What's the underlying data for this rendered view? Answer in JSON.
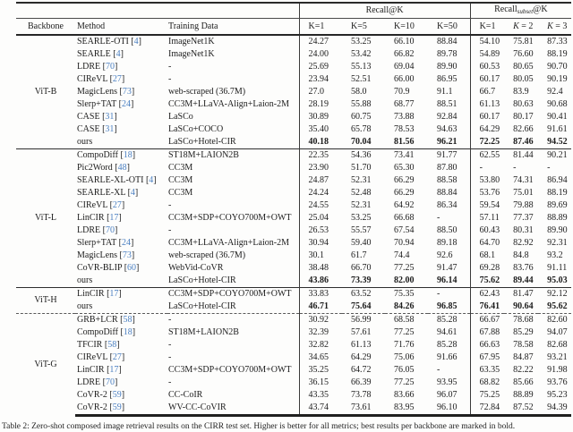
{
  "table": {
    "group1_label": "Recall@K",
    "group2": {
      "prefix": "Recall",
      "subscript": "subset",
      "suffix": "@K"
    },
    "columns": {
      "backbone": "Backbone",
      "method": "Method",
      "training": "Training Data",
      "r_k1": "K=1",
      "r_k5": "K=5",
      "r_k10": "K=10",
      "r_k50": "K=50",
      "s_k1": "K=1",
      "s_k2": {
        "k": "K",
        "rest": " = 2"
      },
      "s_k3": {
        "k": "K",
        "rest": " = 3"
      }
    }
  },
  "colors": {
    "citation_blue": "#4a7fc1",
    "text": "#1c1c1c",
    "background": "#fdfdfc"
  },
  "sections": [
    {
      "backbone": "ViT-B",
      "divider": "none",
      "rows": [
        {
          "method": "SEARLE-OTI",
          "cite": "4",
          "training": "ImageNet1K",
          "values": [
            "24.27",
            "53.25",
            "66.10",
            "88.84",
            "54.10",
            "75.81",
            "87.33"
          ],
          "bold": false
        },
        {
          "method": "SEARLE",
          "cite": "4",
          "training": "ImageNet1K",
          "values": [
            "24.00",
            "53.42",
            "66.82",
            "89.78",
            "54.89",
            "76.60",
            "88.19"
          ],
          "bold": false
        },
        {
          "method": "LDRE",
          "cite": "70",
          "training": "-",
          "values": [
            "25.69",
            "55.13",
            "69.04",
            "89.90",
            "60.53",
            "80.65",
            "90.70"
          ],
          "bold": false
        },
        {
          "method": "CIReVL",
          "cite": "27",
          "training": "-",
          "values": [
            "23.94",
            "52.51",
            "66.00",
            "86.95",
            "60.17",
            "80.05",
            "90.19"
          ],
          "bold": false
        },
        {
          "method": "MagicLens",
          "cite": "73",
          "training": "web-scraped (36.7M)",
          "values": [
            "27.0",
            "58.0",
            "70.9",
            "91.1",
            "66.7",
            "83.9",
            "92.4"
          ],
          "bold": false
        },
        {
          "method": "Slerp+TAT",
          "cite": "24",
          "training": "CC3M+LLaVA-Align+Laion-2M",
          "values": [
            "28.19",
            "55.88",
            "68.77",
            "88.51",
            "61.13",
            "80.63",
            "90.68"
          ],
          "bold": false
        },
        {
          "method": "CASE",
          "cite": "31",
          "training": "LaSCo",
          "values": [
            "30.89",
            "60.75",
            "73.88",
            "92.84",
            "60.17",
            "80.17",
            "90.41"
          ],
          "bold": false
        },
        {
          "method": "CASE",
          "cite": "31",
          "training": "LaSCo+COCO",
          "values": [
            "35.40",
            "65.78",
            "78.53",
            "94.63",
            "64.29",
            "82.66",
            "91.61"
          ],
          "bold": false
        },
        {
          "method": "ours",
          "cite": "",
          "training": "LaSCo+Hotel-CIR",
          "values": [
            "40.18",
            "70.04",
            "81.56",
            "96.21",
            "72.25",
            "87.46",
            "94.52"
          ],
          "bold": true
        }
      ]
    },
    {
      "backbone": "ViT-L",
      "divider": "solid",
      "rows": [
        {
          "method": "CompoDiff",
          "cite": "18",
          "training": "ST18M+LAION2B",
          "values": [
            "22.35",
            "54.36",
            "73.41",
            "91.77",
            "62.55",
            "81.44",
            "90.21"
          ],
          "bold": false
        },
        {
          "method": "Pic2Word",
          "cite": "48",
          "training": "CC3M",
          "values": [
            "23.90",
            "51.70",
            "65.30",
            "87.80",
            "-",
            "-",
            "-"
          ],
          "bold": false
        },
        {
          "method": "SEARLE-XL-OTI",
          "cite": "4",
          "training": "CC3M",
          "values": [
            "24.87",
            "52.31",
            "66.29",
            "88.58",
            "53.80",
            "74.31",
            "86.94"
          ],
          "bold": false
        },
        {
          "method": "SEARLE-XL",
          "cite": "4",
          "training": "CC3M",
          "values": [
            "24.24",
            "52.48",
            "66.29",
            "88.84",
            "53.76",
            "75.01",
            "88.19"
          ],
          "bold": false
        },
        {
          "method": "CIReVL",
          "cite": "27",
          "training": "-",
          "values": [
            "24.55",
            "52.31",
            "64.92",
            "86.34",
            "59.54",
            "79.88",
            "89.69"
          ],
          "bold": false
        },
        {
          "method": "LinCIR",
          "cite": "17",
          "training": "CC3M+SDP+COYO700M+OWT",
          "values": [
            "25.04",
            "53.25",
            "66.68",
            "-",
            "57.11",
            "77.37",
            "88.89"
          ],
          "bold": false
        },
        {
          "method": "LDRE",
          "cite": "70",
          "training": "-",
          "values": [
            "26.53",
            "55.57",
            "67.54",
            "88.50",
            "60.43",
            "80.31",
            "89.90"
          ],
          "bold": false
        },
        {
          "method": "Slerp+TAT",
          "cite": "24",
          "training": "CC3M+LLaVA-Align+Laion-2M",
          "values": [
            "30.94",
            "59.40",
            "70.94",
            "89.18",
            "64.70",
            "82.92",
            "92.31"
          ],
          "bold": false
        },
        {
          "method": "MagicLens",
          "cite": "73",
          "training": "web-scraped (36.7M)",
          "values": [
            "30.1",
            "61.7",
            "74.4",
            "92.6",
            "68.1",
            "84.8",
            "93.2"
          ],
          "bold": false
        },
        {
          "method": "CoVR-BLIP",
          "cite": "60",
          "training": "WebVid-CoVR",
          "values": [
            "38.48",
            "66.70",
            "77.25",
            "91.47",
            "69.28",
            "83.76",
            "91.11"
          ],
          "bold": false
        },
        {
          "method": "ours",
          "cite": "",
          "training": "LaSCo+Hotel-CIR",
          "values": [
            "43.86",
            "73.39",
            "82.00",
            "96.14",
            "75.62",
            "89.44",
            "95.03"
          ],
          "bold": true
        }
      ]
    },
    {
      "backbone": "ViT-H",
      "divider": "solid",
      "rows": [
        {
          "method": "LinCIR",
          "cite": "17",
          "training": "CC3M+SDP+COYO700M+OWT",
          "values": [
            "33.83",
            "63.52",
            "75.35",
            "-",
            "62.43",
            "81.47",
            "92.12"
          ],
          "bold": false
        },
        {
          "method": "ours",
          "cite": "",
          "training": "LaSCo+Hotel-CIR",
          "values": [
            "46.71",
            "75.64",
            "84.26",
            "96.85",
            "76.41",
            "90.64",
            "95.62"
          ],
          "bold": true
        }
      ]
    },
    {
      "backbone": "ViT-G",
      "divider": "dashed",
      "rows": [
        {
          "method": "GRB+LCR",
          "cite": "58",
          "training": "-",
          "values": [
            "30.92",
            "56.99",
            "68.58",
            "85.28",
            "66.67",
            "78.68",
            "82.60"
          ],
          "bold": false
        },
        {
          "method": "CompoDiff",
          "cite": "18",
          "training": "ST18M+LAION2B",
          "values": [
            "32.39",
            "57.61",
            "77.25",
            "94.61",
            "67.88",
            "85.29",
            "94.07"
          ],
          "bold": false
        },
        {
          "method": "TFCIR",
          "cite": "58",
          "training": "-",
          "values": [
            "32.82",
            "61.13",
            "71.76",
            "85.28",
            "66.63",
            "78.58",
            "82.68"
          ],
          "bold": false
        },
        {
          "method": "CIReVL",
          "cite": "27",
          "training": "-",
          "values": [
            "34.65",
            "64.29",
            "75.06",
            "91.66",
            "67.95",
            "84.87",
            "93.21"
          ],
          "bold": false
        },
        {
          "method": "LinCIR",
          "cite": "17",
          "training": "CC3M+SDP+COYO700M+OWT",
          "values": [
            "35.25",
            "64.72",
            "76.05",
            "-",
            "63.35",
            "82.22",
            "91.98"
          ],
          "bold": false
        },
        {
          "method": "LDRE",
          "cite": "70",
          "training": "-",
          "values": [
            "36.15",
            "66.39",
            "77.25",
            "93.95",
            "68.82",
            "85.66",
            "93.76"
          ],
          "bold": false
        },
        {
          "method": "CoVR-2",
          "cite": "59",
          "training": "CC-CoIR",
          "values": [
            "43.35",
            "73.78",
            "83.66",
            "96.07",
            "75.25",
            "88.89",
            "95.23"
          ],
          "bold": false
        },
        {
          "method": "CoVR-2",
          "cite": "59",
          "training": "WV-CC-CoVIR",
          "values": [
            "43.74",
            "73.61",
            "83.95",
            "96.10",
            "72.84",
            "87.52",
            "94.39"
          ],
          "bold": false
        }
      ]
    }
  ],
  "caption": "Table 2: Zero-shot composed image retrieval results on the CIRR test set. Higher is better for all metrics; best results per backbone are marked in bold."
}
